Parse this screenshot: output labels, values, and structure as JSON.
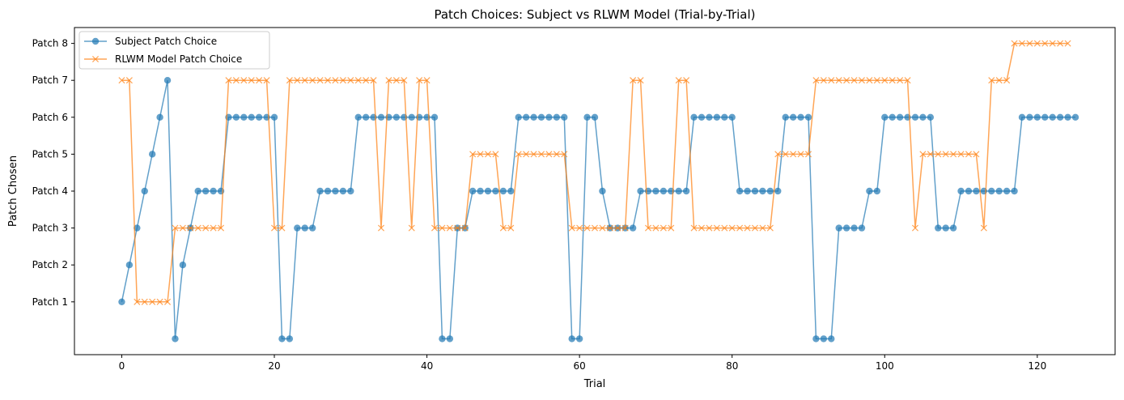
{
  "chart_data": {
    "type": "line",
    "title": "Patch Choices: Subject vs RLWM Model (Trial-by-Trial)",
    "xlabel": "Trial",
    "ylabel": "Patch Chosen",
    "xlim": [
      -6.2,
      130.2
    ],
    "ylim": [
      -0.43,
      8.43
    ],
    "xticks": [
      0,
      20,
      40,
      60,
      80,
      100,
      120
    ],
    "yticks": [
      {
        "value": 1,
        "label": "Patch 1"
      },
      {
        "value": 2,
        "label": "Patch 2"
      },
      {
        "value": 3,
        "label": "Patch 3"
      },
      {
        "value": 4,
        "label": "Patch 4"
      },
      {
        "value": 5,
        "label": "Patch 5"
      },
      {
        "value": 6,
        "label": "Patch 6"
      },
      {
        "value": 7,
        "label": "Patch 7"
      },
      {
        "value": 8,
        "label": "Patch 8"
      }
    ],
    "grid": false,
    "legend_position": "top-left",
    "x_start": 0,
    "series": [
      {
        "name": "Subject Patch Choice",
        "color": "#1f77b4",
        "marker": "circle",
        "values": [
          1,
          2,
          3,
          4,
          5,
          6,
          7,
          0,
          2,
          3,
          4,
          4,
          4,
          4,
          6,
          6,
          6,
          6,
          6,
          6,
          6,
          0,
          0,
          3,
          3,
          3,
          4,
          4,
          4,
          4,
          4,
          6,
          6,
          6,
          6,
          6,
          6,
          6,
          6,
          6,
          6,
          6,
          0,
          0,
          3,
          3,
          4,
          4,
          4,
          4,
          4,
          4,
          6,
          6,
          6,
          6,
          6,
          6,
          6,
          0,
          0,
          6,
          6,
          4,
          3,
          3,
          3,
          3,
          4,
          4,
          4,
          4,
          4,
          4,
          4,
          6,
          6,
          6,
          6,
          6,
          6,
          4,
          4,
          4,
          4,
          4,
          4,
          6,
          6,
          6,
          6,
          0,
          0,
          0,
          3,
          3,
          3,
          3,
          4,
          4,
          6,
          6,
          6,
          6,
          6,
          6,
          6,
          3,
          3,
          3,
          4,
          4,
          4,
          4,
          4,
          4,
          4,
          4,
          6,
          6,
          6,
          6,
          6,
          6,
          6,
          6
        ]
      },
      {
        "name": "RLWM Model Patch Choice",
        "color": "#ff7f0e",
        "marker": "x",
        "values": [
          7,
          7,
          1,
          1,
          1,
          1,
          1,
          3,
          3,
          3,
          3,
          3,
          3,
          3,
          7,
          7,
          7,
          7,
          7,
          7,
          3,
          3,
          7,
          7,
          7,
          7,
          7,
          7,
          7,
          7,
          7,
          7,
          7,
          7,
          3,
          7,
          7,
          7,
          3,
          7,
          7,
          3,
          3,
          3,
          3,
          3,
          5,
          5,
          5,
          5,
          3,
          3,
          5,
          5,
          5,
          5,
          5,
          5,
          5,
          3,
          3,
          3,
          3,
          3,
          3,
          3,
          3,
          7,
          7,
          3,
          3,
          3,
          3,
          7,
          7,
          3,
          3,
          3,
          3,
          3,
          3,
          3,
          3,
          3,
          3,
          3,
          5,
          5,
          5,
          5,
          5,
          7,
          7,
          7,
          7,
          7,
          7,
          7,
          7,
          7,
          7,
          7,
          7,
          7,
          3,
          5,
          5,
          5,
          5,
          5,
          5,
          5,
          5,
          3,
          7,
          7,
          7,
          8,
          8,
          8,
          8,
          8,
          8,
          8,
          8
        ]
      }
    ]
  }
}
